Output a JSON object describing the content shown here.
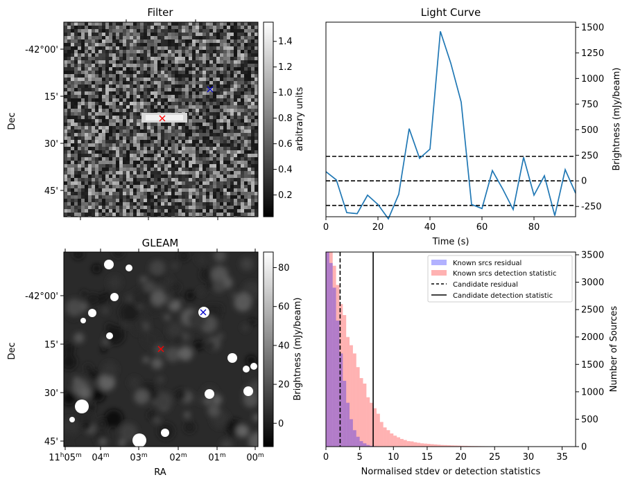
{
  "filter_panel": {
    "title": "Filter",
    "ylabel": "Dec",
    "yticks": [
      "-42°00'",
      "15'",
      "30'",
      "45'"
    ],
    "colorbar": {
      "label": "arbitrary units",
      "ticks": [
        "0.2",
        "0.4",
        "0.6",
        "0.8",
        "1.0",
        "1.2",
        "1.4"
      ],
      "range": [
        0.03,
        1.55
      ]
    },
    "markers": {
      "red_x": "x",
      "blue_x": "x"
    }
  },
  "gleam_panel": {
    "title": "GLEAM",
    "ylabel": "Dec",
    "xlabel": "RA",
    "yticks": [
      "-42°00'",
      "15'",
      "30'",
      "45'"
    ],
    "xticks": [
      {
        "h": "11",
        "hu": "h",
        "m": "05",
        "mu": "m"
      },
      {
        "h": "",
        "hu": "",
        "m": "04",
        "mu": "m"
      },
      {
        "h": "",
        "hu": "",
        "m": "03",
        "mu": "m"
      },
      {
        "h": "",
        "hu": "",
        "m": "02",
        "mu": "m"
      },
      {
        "h": "",
        "hu": "",
        "m": "01",
        "mu": "m"
      },
      {
        "h": "",
        "hu": "",
        "m": "00",
        "mu": "m"
      }
    ],
    "colorbar": {
      "label": "Brightness (mJy/beam)",
      "ticks": [
        "0",
        "20",
        "40",
        "60",
        "80"
      ],
      "range": [
        -12,
        88
      ]
    },
    "markers": {
      "red_x": "x",
      "blue_x": "x"
    }
  },
  "chart_data": [
    {
      "type": "line",
      "title": "Light Curve",
      "xlabel": "Time (s)",
      "ylabel": "Brightness (mJy/beam)",
      "xlim": [
        0,
        96
      ],
      "ylim": [
        -350,
        1550
      ],
      "xticks": [
        0,
        20,
        40,
        60,
        80
      ],
      "yticks": [
        -250,
        0,
        250,
        500,
        750,
        1000,
        1250,
        1500
      ],
      "x": [
        0,
        4,
        8,
        12,
        16,
        20,
        24,
        28,
        32,
        36,
        40,
        44,
        48,
        52,
        56,
        60,
        64,
        68,
        72,
        76,
        80,
        84,
        88,
        92,
        96
      ],
      "y": [
        90,
        10,
        -310,
        -320,
        -140,
        -230,
        -370,
        -130,
        510,
        220,
        310,
        1460,
        1150,
        770,
        -230,
        -270,
        100,
        -80,
        -280,
        230,
        -140,
        50,
        -340,
        110,
        -120
      ],
      "hlines": [
        240,
        0,
        -240
      ],
      "color": "#1f77b4",
      "axis_position": "right"
    },
    {
      "type": "histogram",
      "xlabel": "Normalised stdev or detection statistics",
      "ylabel": "Number of Sources",
      "xlim": [
        0,
        37
      ],
      "ylim": [
        0,
        3550
      ],
      "xticks": [
        0,
        5,
        10,
        15,
        20,
        25,
        30,
        35
      ],
      "yticks": [
        0,
        500,
        1000,
        1500,
        2000,
        2500,
        3000,
        3500
      ],
      "bin_width": 0.5,
      "series": [
        {
          "name": "Known srcs residual",
          "color": "#0000ff",
          "alpha": 0.3,
          "values": [
            3550,
            3350,
            2900,
            2300,
            1700,
            1200,
            800,
            500,
            300,
            180,
            100,
            60,
            30,
            15,
            8,
            4,
            2,
            1
          ]
        },
        {
          "name": "Known srcs detection statistic",
          "color": "#ff0000",
          "alpha": 0.3,
          "values": [
            3550,
            3550,
            3300,
            2950,
            2600,
            2400,
            2000,
            1850,
            1700,
            1450,
            1250,
            1150,
            900,
            800,
            700,
            600,
            450,
            350,
            300,
            240,
            200,
            170,
            140,
            120,
            100,
            95,
            80,
            70,
            60,
            55,
            50,
            45,
            40,
            35,
            30,
            28,
            25,
            22,
            20,
            18,
            15,
            14,
            12,
            11,
            10,
            9,
            8,
            7,
            6,
            5,
            5,
            4,
            4,
            3,
            3,
            3,
            2,
            2,
            2,
            2,
            1,
            1,
            1,
            1,
            1,
            1,
            1,
            1,
            1,
            1
          ]
        }
      ],
      "vlines": [
        {
          "name": "Candidate residual",
          "x": 2.1,
          "style": "dashed"
        },
        {
          "name": "Candidate detection statistic",
          "x": 7.0,
          "style": "solid"
        }
      ],
      "legend_position": "top-right",
      "axis_position": "right"
    }
  ]
}
